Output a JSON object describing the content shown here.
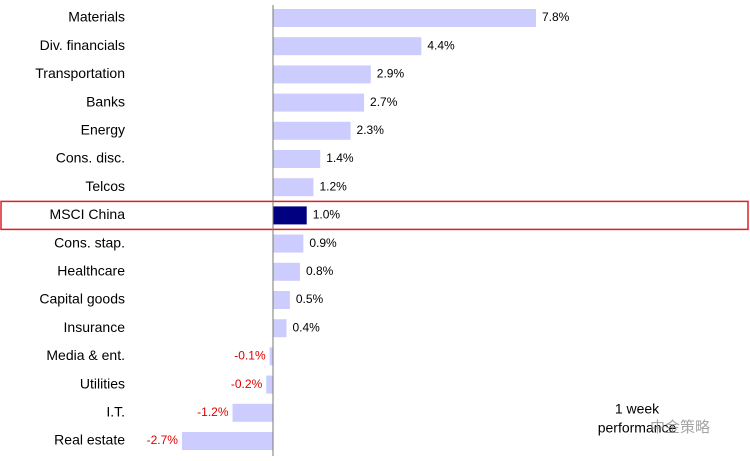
{
  "chart_data": {
    "type": "bar",
    "orientation": "horizontal",
    "categories": [
      "Materials",
      "Div. financials",
      "Transportation",
      "Banks",
      "Energy",
      "Cons. disc.",
      "Telcos",
      "MSCI China",
      "Cons. stap.",
      "Healthcare",
      "Capital goods",
      "Insurance",
      "Media & ent.",
      "Utilities",
      "I.T.",
      "Real estate"
    ],
    "values": [
      7.8,
      4.4,
      2.9,
      2.7,
      2.3,
      1.4,
      1.2,
      1.0,
      0.9,
      0.8,
      0.5,
      0.4,
      -0.1,
      -0.2,
      -1.2,
      -2.7
    ],
    "value_labels": [
      "7.8%",
      "4.4%",
      "2.9%",
      "2.7%",
      "2.3%",
      "1.4%",
      "1.2%",
      "1.0%",
      "0.9%",
      "0.8%",
      "0.5%",
      "0.4%",
      "-0.1%",
      "-0.2%",
      "-1.2%",
      "-2.7%"
    ],
    "colors": [
      "#ccccff",
      "#ccccff",
      "#ccccff",
      "#ccccff",
      "#ccccff",
      "#ccccff",
      "#ccccff",
      "#000080",
      "#ccccff",
      "#ccccff",
      "#ccccff",
      "#ccccff",
      "#ccccff",
      "#ccccff",
      "#ccccff",
      "#ccccff"
    ],
    "highlight_index": 7,
    "highlight_color": "#e02020",
    "negative_label_color": "#e00000",
    "annotation": [
      "1 week",
      "performance"
    ],
    "watermark": "中金策略"
  }
}
